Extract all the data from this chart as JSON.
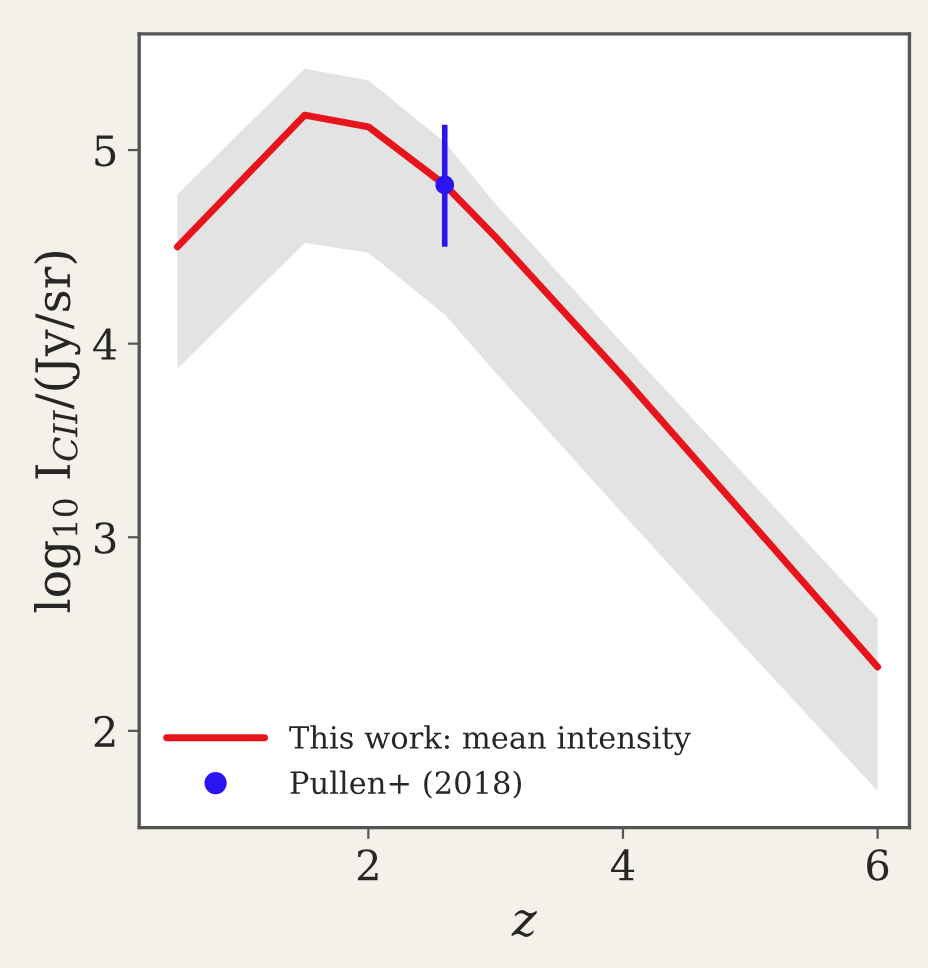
{
  "chart_data": {
    "type": "line",
    "xlabel": "z",
    "ylabel": "log$_{10}$ I$_{CII}$/(Jy/sr)",
    "xlim": [
      0.2,
      6.25
    ],
    "ylim": [
      1.5,
      5.6
    ],
    "xticks": [
      2,
      4,
      6
    ],
    "yticks": [
      2,
      3,
      4,
      5
    ],
    "grid": false,
    "legend": "bottom left",
    "series": [
      {
        "name": "This work: mean intensity",
        "color": "#e8141c",
        "x": [
          0.5,
          1.5,
          2,
          2.6,
          3,
          4,
          5,
          6
        ],
        "values": [
          4.5,
          5.18,
          5.12,
          4.82,
          4.55,
          3.83,
          3.08,
          2.33
        ],
        "lower": [
          3.87,
          4.52,
          4.47,
          4.15,
          3.85,
          3.12,
          2.4,
          1.69
        ],
        "upper": [
          4.77,
          5.42,
          5.36,
          5.04,
          4.72,
          4.0,
          3.29,
          2.58
        ]
      },
      {
        "name": "Pullen+ (2018)",
        "type": "scatter",
        "color": "#2a14f0",
        "marker": "circle",
        "x": [
          2.6
        ],
        "values": [
          4.82
        ],
        "errors": [
          [
            4.5,
            5.13
          ]
        ]
      }
    ]
  }
}
